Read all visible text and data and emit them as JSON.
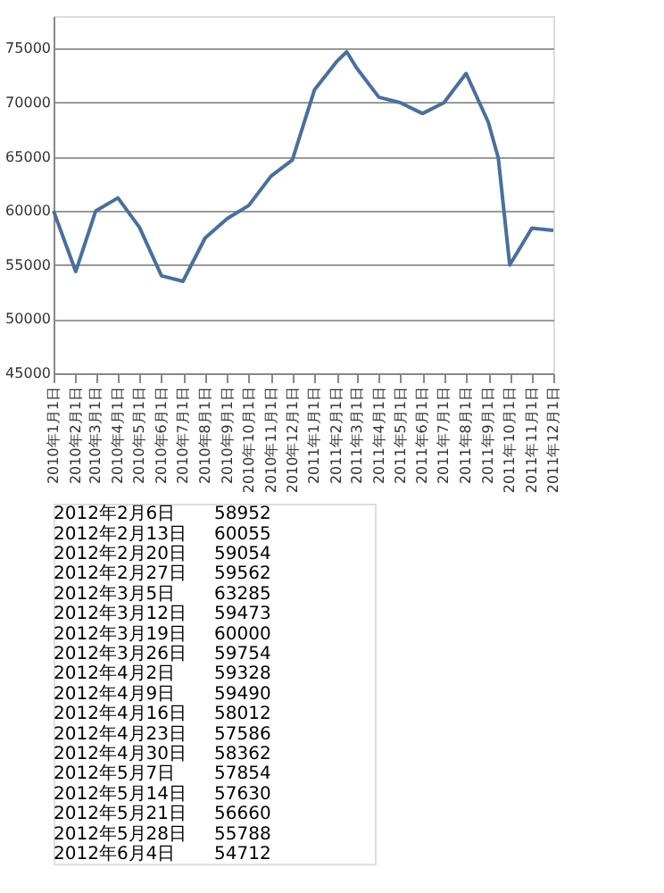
{
  "chart_data": {
    "type": "line",
    "x": [
      "2010-01-01",
      "2010-02-01",
      "2010-03-01",
      "2010-04-01",
      "2010-05-01",
      "2010-06-01",
      "2010-07-01",
      "2010-08-01",
      "2010-09-01",
      "2010-10-01",
      "2010-11-01",
      "2010-12-01",
      "2011-01-01",
      "2011-02-01",
      "2011-02-15",
      "2011-03-01",
      "2011-04-01",
      "2011-05-01",
      "2011-06-01",
      "2011-07-01",
      "2011-08-01",
      "2011-09-01",
      "2011-09-15",
      "2011-10-01",
      "2011-11-01",
      "2011-12-01"
    ],
    "series": [
      {
        "color": "#4a6f9a",
        "values": [
          60000,
          54400,
          60000,
          61200,
          58500,
          54000,
          53500,
          57500,
          59300,
          60500,
          63200,
          64700,
          71200,
          73800,
          74700,
          73200,
          70500,
          70000,
          69000,
          70000,
          72700,
          68200,
          64900,
          55000,
          58400,
          58200
        ]
      }
    ],
    "xlim": [
      "2010-01-01",
      "2011-12-01"
    ],
    "xticks": [
      {
        "value": "2010-01-01",
        "label": "2010年1月1日"
      },
      {
        "value": "2010-02-01",
        "label": "2010年2月1日"
      },
      {
        "value": "2010-03-01",
        "label": "2010年3月1日"
      },
      {
        "value": "2010-04-01",
        "label": "2010年4月1日"
      },
      {
        "value": "2010-05-01",
        "label": "2010年5月1日"
      },
      {
        "value": "2010-06-01",
        "label": "2010年6月1日"
      },
      {
        "value": "2010-07-01",
        "label": "2010年7月1日"
      },
      {
        "value": "2010-08-01",
        "label": "2010年8月1日"
      },
      {
        "value": "2010-09-01",
        "label": "2010年9月1日"
      },
      {
        "value": "2010-10-01",
        "label": "2010年10月1日"
      },
      {
        "value": "2010-11-01",
        "label": "2010年11月1日"
      },
      {
        "value": "2010-12-01",
        "label": "2010年12月1日"
      },
      {
        "value": "2011-01-01",
        "label": "2011年1月1日"
      },
      {
        "value": "2011-02-01",
        "label": "2011年2月1日"
      },
      {
        "value": "2011-03-01",
        "label": "2011年3月1日"
      },
      {
        "value": "2011-04-01",
        "label": "2011年4月1日"
      },
      {
        "value": "2011-05-01",
        "label": "2011年5月1日"
      },
      {
        "value": "2011-06-01",
        "label": "2011年6月1日"
      },
      {
        "value": "2011-07-01",
        "label": "2011年7月1日"
      },
      {
        "value": "2011-08-01",
        "label": "2011年8月1日"
      },
      {
        "value": "2011-09-01",
        "label": "2011年9月1日"
      },
      {
        "value": "2011-10-01",
        "label": "2011年10月1日"
      },
      {
        "value": "2011-11-01",
        "label": "2011年11月1日"
      },
      {
        "value": "2011-12-01",
        "label": "2011年12月1日"
      }
    ],
    "ylim": [
      45000,
      78000
    ],
    "yticks": [
      45000,
      50000,
      55000,
      60000,
      65000,
      70000,
      75000
    ],
    "grid": "y",
    "marker": "none",
    "line_style": "solid",
    "annotations": [
      "2012年2月6日 58952",
      "2012年2月13日 60055",
      "2012年2月20日 59054",
      "2012年2月27日 59562",
      "2012年3月5日 63285",
      "2012年3月12日 59473",
      "2012年3月19日 60000",
      "2012年3月26日 59754",
      "2012年4月2日 59328",
      "2012年4月9日 59490",
      "2012年4月16日 58012",
      "2012年4月23日 57586",
      "2012年4月30日 58362",
      "2012年5月7日 57854",
      "2012年5月14日 57630",
      "2012年5月21日 56660",
      "2012年5月28日 55788",
      "2012年6月4日 54712"
    ]
  }
}
